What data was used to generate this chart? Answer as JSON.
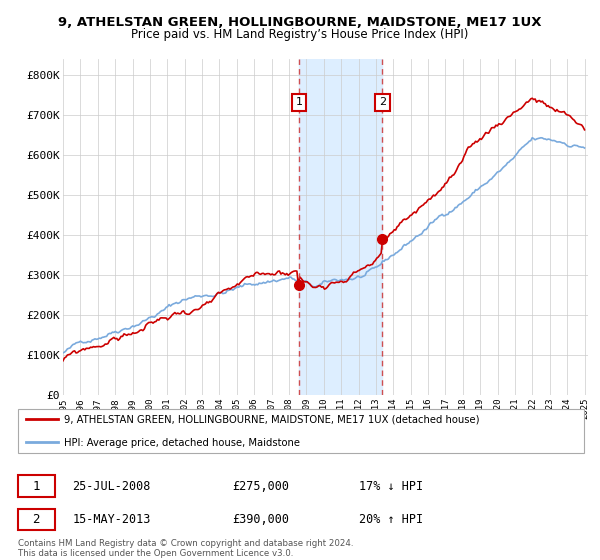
{
  "title": "9, ATHELSTAN GREEN, HOLLINGBOURNE, MAIDSTONE, ME17 1UX",
  "subtitle": "Price paid vs. HM Land Registry’s House Price Index (HPI)",
  "ylabel_ticks": [
    "£0",
    "£100K",
    "£200K",
    "£300K",
    "£400K",
    "£500K",
    "£600K",
    "£700K",
    "£800K"
  ],
  "ytick_values": [
    0,
    100000,
    200000,
    300000,
    400000,
    500000,
    600000,
    700000,
    800000
  ],
  "ylim": [
    0,
    840000
  ],
  "sale1_date": "25-JUL-2008",
  "sale1_price": 275000,
  "sale1_hpi_diff": "17% ↓ HPI",
  "sale2_date": "15-MAY-2013",
  "sale2_price": 390000,
  "sale2_hpi_diff": "20% ↑ HPI",
  "legend_line1": "9, ATHELSTAN GREEN, HOLLINGBOURNE, MAIDSTONE, ME17 1UX (detached house)",
  "legend_line2": "HPI: Average price, detached house, Maidstone",
  "footer": "Contains HM Land Registry data © Crown copyright and database right 2024.\nThis data is licensed under the Open Government Licence v3.0.",
  "property_color": "#cc0000",
  "hpi_color": "#7aaadd",
  "shaded_color": "#ddeeff",
  "marker1_x": 2008.57,
  "marker2_x": 2013.37,
  "marker1_y": 275000,
  "marker2_y": 390000,
  "vline1_x": 2008.57,
  "vline2_x": 2013.37,
  "xlim_left": 1995.0,
  "xlim_right": 2025.2
}
